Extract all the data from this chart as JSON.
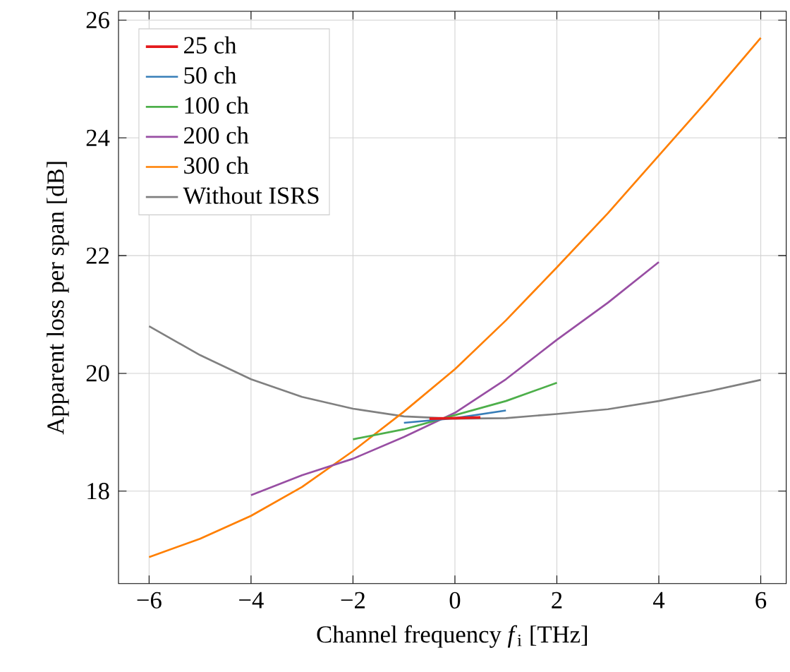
{
  "chart_data": {
    "type": "line",
    "xlabel": "Channel frequency *f*$_{i}$ [THz]",
    "ylabel": "Apparent loss per span [dB]",
    "xlim": [
      -6.6,
      6.5
    ],
    "ylim": [
      16.43,
      26.15
    ],
    "xticks": [
      {
        "value": -6,
        "label": "−6"
      },
      {
        "value": -4,
        "label": "−4"
      },
      {
        "value": -2,
        "label": "−2"
      },
      0,
      2,
      4,
      6
    ],
    "yticks": [
      18,
      20,
      22,
      24,
      26
    ],
    "grid": true,
    "legend": "top left",
    "line_style": "solid",
    "marker": "none",
    "series": [
      {
        "name": "25 ch",
        "color": "#e41a1c",
        "x": [
          -0.5,
          0,
          0.5
        ],
        "values": [
          19.23,
          19.24,
          19.25
        ]
      },
      {
        "name": "50 ch",
        "color": "#377eb8",
        "x": [
          -1,
          0,
          1
        ],
        "values": [
          19.16,
          19.24,
          19.37
        ]
      },
      {
        "name": "100 ch",
        "color": "#4daf4a",
        "x": [
          -2,
          -1,
          0,
          1,
          2
        ],
        "values": [
          18.88,
          19.05,
          19.29,
          19.53,
          19.84
        ]
      },
      {
        "name": "200 ch",
        "color": "#984ea3",
        "x": [
          -4,
          -3,
          -2,
          -1,
          0,
          1,
          2,
          3,
          4
        ],
        "values": [
          17.93,
          18.27,
          18.55,
          18.92,
          19.33,
          19.9,
          20.57,
          21.2,
          21.89
        ]
      },
      {
        "name": "300 ch",
        "color": "#ff7f00",
        "x": [
          -6,
          -5,
          -4,
          -3,
          -2,
          -1,
          0,
          1,
          2,
          3,
          4,
          5,
          6
        ],
        "values": [
          16.88,
          17.19,
          17.58,
          18.07,
          18.68,
          19.35,
          20.07,
          20.9,
          21.8,
          22.72,
          23.7,
          24.68,
          25.7
        ]
      },
      {
        "name": "Without ISRS",
        "color": "#808080",
        "x": [
          -6,
          -5,
          -4,
          -3,
          -2,
          -1,
          0,
          1,
          2,
          3,
          4,
          5,
          6
        ],
        "values": [
          20.8,
          20.31,
          19.9,
          19.6,
          19.4,
          19.27,
          19.23,
          19.24,
          19.31,
          19.39,
          19.53,
          19.7,
          19.89
        ]
      }
    ]
  }
}
